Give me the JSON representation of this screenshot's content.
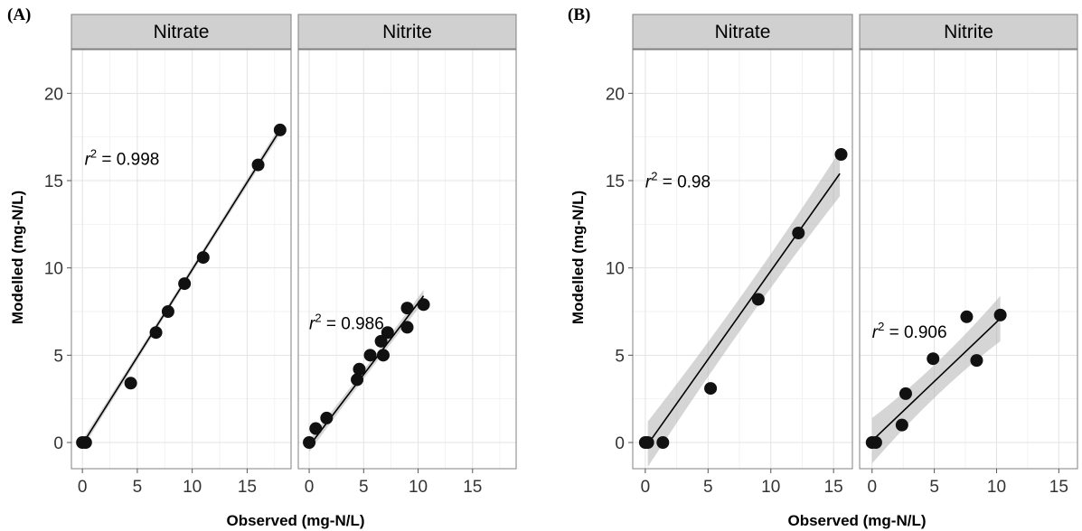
{
  "figure": {
    "panels": [
      {
        "tag": "(A)",
        "xlabel": "Observed (mg-N/L)",
        "ylabel": "Modelled (mg-N/L)"
      },
      {
        "tag": "(B)",
        "xlabel": "Observed (mg-N/L)",
        "ylabel": "Modelled (mg-N/L)"
      }
    ]
  },
  "chart_data": [
    {
      "type": "scatter",
      "panel": "(A)",
      "facet": "Nitrate",
      "xlabel": "Observed (mg-N/L)",
      "ylabel": "Modelled (mg-N/L)",
      "xlim": [
        -1,
        19
      ],
      "ylim": [
        -1.5,
        22.5
      ],
      "xticks": [
        0,
        5,
        10,
        15
      ],
      "yticks": [
        0,
        5,
        10,
        15,
        20
      ],
      "grid": true,
      "points": [
        [
          0.0,
          0.0
        ],
        [
          0.3,
          0.0
        ],
        [
          4.4,
          3.4
        ],
        [
          6.7,
          6.3
        ],
        [
          7.8,
          7.5
        ],
        [
          9.3,
          9.1
        ],
        [
          11.0,
          10.6
        ],
        [
          16.0,
          15.9
        ],
        [
          18.0,
          17.9
        ]
      ],
      "fit": {
        "x": [
          0.0,
          18.0
        ],
        "y": [
          -0.1,
          17.9
        ],
        "ci": 0.25
      },
      "annotation": {
        "x": 0.2,
        "y": 15.9,
        "r2_label": "r",
        "r2_sup": "2",
        "r2_value": " = 0.998"
      }
    },
    {
      "type": "scatter",
      "panel": "(A)",
      "facet": "Nitrite",
      "xlabel": "Observed (mg-N/L)",
      "ylabel": "Modelled (mg-N/L)",
      "xlim": [
        -1,
        19
      ],
      "ylim": [
        -1.5,
        22.5
      ],
      "xticks": [
        0,
        5,
        10,
        15
      ],
      "yticks": [
        0,
        5,
        10,
        15,
        20
      ],
      "grid": true,
      "points": [
        [
          0.0,
          0.0
        ],
        [
          0.6,
          0.8
        ],
        [
          1.6,
          1.4
        ],
        [
          4.4,
          3.6
        ],
        [
          4.6,
          4.2
        ],
        [
          5.6,
          5.0
        ],
        [
          6.6,
          5.8
        ],
        [
          6.8,
          5.0
        ],
        [
          7.2,
          6.3
        ],
        [
          9.0,
          6.6
        ],
        [
          9.0,
          7.7
        ],
        [
          10.5,
          7.9
        ]
      ],
      "fit": {
        "x": [
          0.0,
          10.5
        ],
        "y": [
          -0.2,
          8.4
        ],
        "ci": 0.35
      },
      "annotation": {
        "x": 0.0,
        "y": 6.5,
        "r2_label": "r",
        "r2_sup": "2",
        "r2_value": " = 0.986"
      }
    },
    {
      "type": "scatter",
      "panel": "(B)",
      "facet": "Nitrate",
      "xlabel": "Observed (mg-N/L)",
      "ylabel": "Modelled (mg-N/L)",
      "xlim": [
        -1,
        16.5
      ],
      "ylim": [
        -1.5,
        22.5
      ],
      "xticks": [
        0,
        5,
        10,
        15
      ],
      "yticks": [
        0,
        5,
        10,
        15,
        20
      ],
      "grid": true,
      "points": [
        [
          0.0,
          0.0
        ],
        [
          0.2,
          0.0
        ],
        [
          1.4,
          0.0
        ],
        [
          5.2,
          3.1
        ],
        [
          9.0,
          8.2
        ],
        [
          12.2,
          12.0
        ],
        [
          15.6,
          16.5
        ]
      ],
      "fit": {
        "x": [
          0.2,
          15.5
        ],
        "y": [
          -0.1,
          15.4
        ],
        "ci": 1.3
      },
      "annotation": {
        "x": 0.0,
        "y": 14.6,
        "r2_label": "r",
        "r2_sup": "2",
        "r2_value": " = 0.98"
      }
    },
    {
      "type": "scatter",
      "panel": "(B)",
      "facet": "Nitrite",
      "xlabel": "Observed (mg-N/L)",
      "ylabel": "Modelled (mg-N/L)",
      "xlim": [
        -1,
        16.5
      ],
      "ylim": [
        -1.5,
        22.5
      ],
      "xticks": [
        0,
        5,
        10,
        15
      ],
      "yticks": [
        0,
        5,
        10,
        15,
        20
      ],
      "grid": true,
      "points": [
        [
          0.0,
          0.0
        ],
        [
          0.3,
          0.0
        ],
        [
          2.4,
          1.0
        ],
        [
          2.7,
          2.8
        ],
        [
          4.9,
          4.8
        ],
        [
          7.6,
          7.2
        ],
        [
          8.4,
          4.7
        ],
        [
          10.3,
          7.3
        ]
      ],
      "fit": {
        "x": [
          0.0,
          10.3
        ],
        "y": [
          0.1,
          7.1
        ],
        "ci": 1.3
      },
      "annotation": {
        "x": 0.0,
        "y": 6.0,
        "r2_label": "r",
        "r2_sup": "2",
        "r2_value": " = 0.906"
      }
    }
  ]
}
